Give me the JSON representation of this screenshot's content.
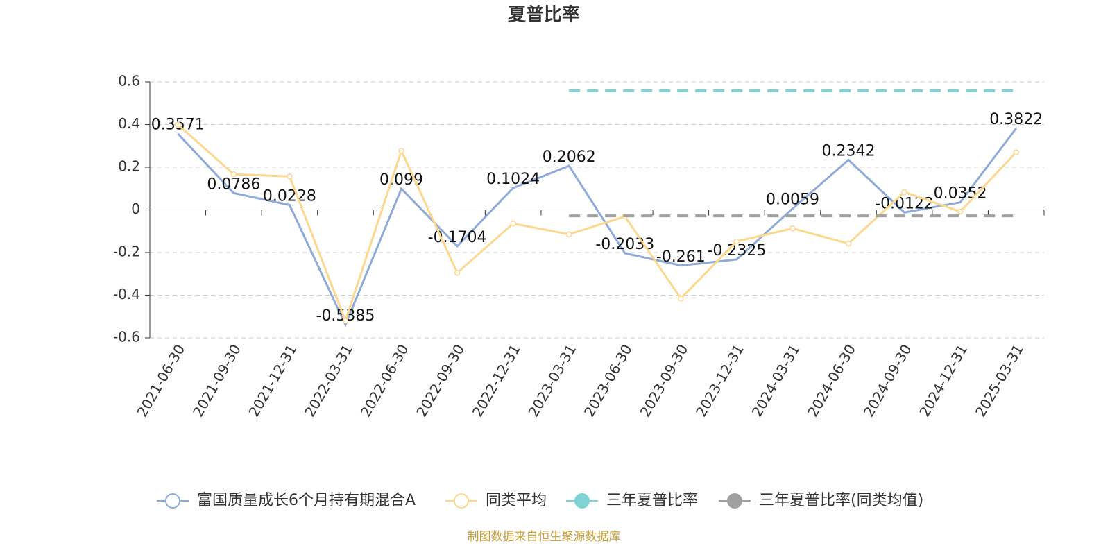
{
  "chart_data": {
    "type": "line",
    "title": "夏普比率",
    "source": "制图数据来自恒生聚源数据库",
    "categories": [
      "2021-06-30",
      "2021-09-30",
      "2021-12-31",
      "2022-03-31",
      "2022-06-30",
      "2022-09-30",
      "2022-12-31",
      "2023-03-31",
      "2023-06-30",
      "2023-09-30",
      "2023-12-31",
      "2024-03-31",
      "2024-06-30",
      "2024-09-30",
      "2024-12-31",
      "2025-03-31"
    ],
    "series": [
      {
        "name": "富国质量成长6个月持有期混合A",
        "color": "#8eaad8",
        "labels": true,
        "values": [
          0.3571,
          0.0786,
          0.0228,
          -0.5385,
          0.099,
          -0.1704,
          0.1024,
          0.2062,
          -0.2033,
          -0.261,
          -0.2325,
          0.0059,
          0.2342,
          -0.0122,
          0.0352,
          0.3822
        ]
      },
      {
        "name": "同类平均",
        "color": "#fcd88f",
        "markers": true,
        "values": [
          0.4,
          0.167,
          0.157,
          -0.52,
          0.277,
          -0.295,
          -0.064,
          -0.115,
          -0.031,
          -0.415,
          -0.148,
          -0.087,
          -0.158,
          0.083,
          -0.008,
          0.27
        ]
      },
      {
        "name": "三年夏普比率",
        "color": "#7fd3d3",
        "dashed": true,
        "values": [
          null,
          null,
          null,
          null,
          null,
          null,
          null,
          0.558,
          0.558,
          0.558,
          0.558,
          0.558,
          0.558,
          0.558,
          0.558,
          0.558
        ]
      },
      {
        "name": "三年夏普比率(同类均值)",
        "color": "#a0a0a0",
        "dashed": true,
        "values": [
          null,
          null,
          null,
          null,
          null,
          null,
          null,
          -0.028,
          -0.028,
          -0.028,
          -0.028,
          -0.028,
          -0.028,
          -0.028,
          -0.028,
          -0.028
        ]
      }
    ],
    "ylim": [
      -0.6,
      0.6
    ],
    "yticks": [
      -0.6,
      -0.4,
      -0.2,
      0,
      0.2,
      0.4,
      0.6
    ],
    "grid": true,
    "legend": "bottom"
  }
}
